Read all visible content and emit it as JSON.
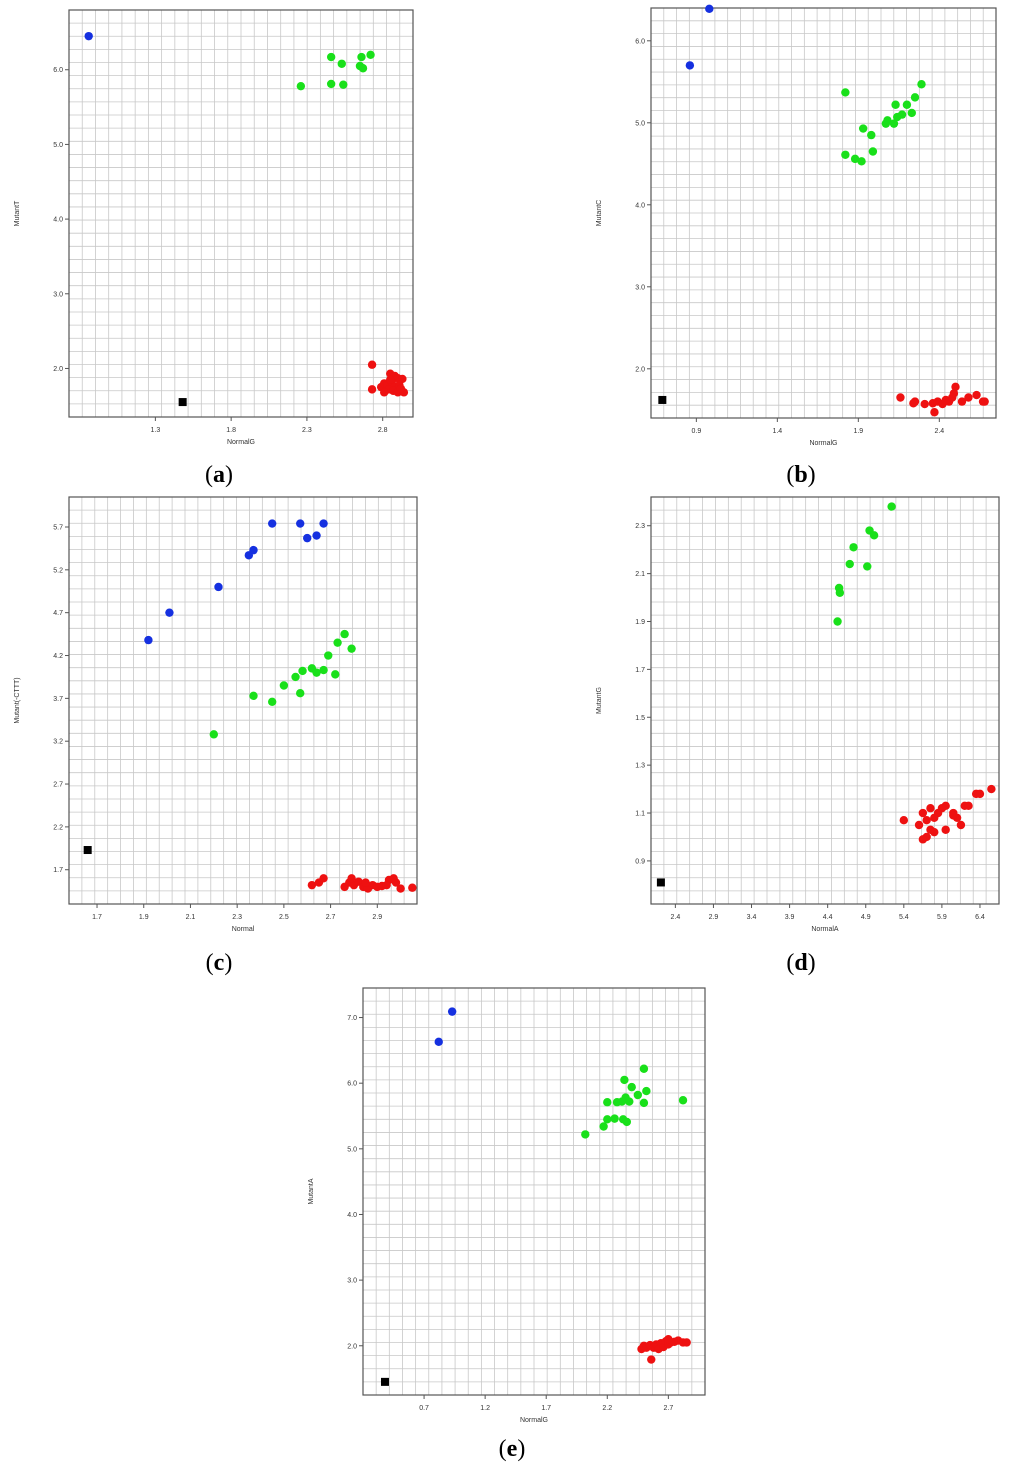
{
  "figure": {
    "colors": {
      "blue": "#1530e0",
      "green": "#19e01a",
      "red": "#ee1111",
      "black": "#000000",
      "grid": "#c8c8c8",
      "frame": "#555555"
    }
  },
  "chart_data": [
    {
      "panel": "a",
      "caption_letter": "a",
      "type": "scatter",
      "xlabel": "NormalG",
      "ylabel": "MutantT",
      "xticks": [
        "1.3",
        "1.8",
        "2.3",
        "2.8"
      ],
      "yticks": [
        "2.0",
        "3.0",
        "4.0",
        "5.0",
        "6.0"
      ],
      "xlim": [
        0.73,
        3.0
      ],
      "ylim": [
        1.35,
        6.8
      ],
      "grid": true,
      "series": [
        {
          "color": "blue",
          "points": [
            [
              0.86,
              6.45
            ]
          ]
        },
        {
          "color": "green",
          "points": [
            [
              2.46,
              6.17
            ],
            [
              2.53,
              6.08
            ],
            [
              2.66,
              6.17
            ],
            [
              2.72,
              6.2
            ],
            [
              2.65,
              6.05
            ],
            [
              2.67,
              6.02
            ],
            [
              2.46,
              5.81
            ],
            [
              2.54,
              5.8
            ],
            [
              2.26,
              5.78
            ]
          ]
        },
        {
          "color": "red",
          "points": [
            [
              2.73,
              2.05
            ],
            [
              2.73,
              1.72
            ],
            [
              2.79,
              1.75
            ],
            [
              2.81,
              1.8
            ],
            [
              2.83,
              1.78
            ],
            [
              2.85,
              1.93
            ],
            [
              2.88,
              1.9
            ],
            [
              2.9,
              1.87
            ],
            [
              2.93,
              1.86
            ],
            [
              2.86,
              1.82
            ],
            [
              2.88,
              1.75
            ],
            [
              2.91,
              1.78
            ],
            [
              2.84,
              1.72
            ],
            [
              2.87,
              1.7
            ],
            [
              2.9,
              1.68
            ],
            [
              2.94,
              1.68
            ],
            [
              2.81,
              1.68
            ],
            [
              2.85,
              1.85
            ],
            [
              2.92,
              1.73
            ]
          ]
        },
        {
          "color": "black",
          "shape": "square",
          "points": [
            [
              1.48,
              1.55
            ]
          ]
        }
      ]
    },
    {
      "panel": "b",
      "caption_letter": "b",
      "type": "scatter",
      "xlabel": "NormalG",
      "ylabel": "MutantC",
      "xticks": [
        "0.9",
        "1.4",
        "1.9",
        "2.4"
      ],
      "yticks": [
        "2.0",
        "3.0",
        "4.0",
        "5.0",
        "6.0"
      ],
      "xlim": [
        0.62,
        2.75
      ],
      "ylim": [
        1.4,
        6.4
      ],
      "grid": true,
      "series": [
        {
          "color": "blue",
          "points": [
            [
              0.86,
              5.7
            ],
            [
              0.98,
              6.39
            ]
          ]
        },
        {
          "color": "green",
          "points": [
            [
              1.82,
              5.37
            ],
            [
              2.29,
              5.47
            ],
            [
              2.25,
              5.31
            ],
            [
              2.13,
              5.22
            ],
            [
              2.2,
              5.22
            ],
            [
              2.23,
              5.12
            ],
            [
              2.17,
              5.1
            ],
            [
              2.14,
              5.07
            ],
            [
              2.08,
              5.03
            ],
            [
              2.07,
              4.99
            ],
            [
              2.12,
              4.99
            ],
            [
              1.93,
              4.93
            ],
            [
              1.98,
              4.85
            ],
            [
              1.82,
              4.61
            ],
            [
              1.88,
              4.56
            ],
            [
              1.92,
              4.53
            ],
            [
              1.99,
              4.65
            ]
          ]
        },
        {
          "color": "red",
          "points": [
            [
              2.16,
              1.65
            ],
            [
              2.24,
              1.58
            ],
            [
              2.25,
              1.6
            ],
            [
              2.31,
              1.57
            ],
            [
              2.36,
              1.58
            ],
            [
              2.39,
              1.6
            ],
            [
              2.42,
              1.57
            ],
            [
              2.44,
              1.62
            ],
            [
              2.46,
              1.6
            ],
            [
              2.48,
              1.65
            ],
            [
              2.49,
              1.7
            ],
            [
              2.5,
              1.78
            ],
            [
              2.54,
              1.6
            ],
            [
              2.58,
              1.65
            ],
            [
              2.63,
              1.68
            ],
            [
              2.67,
              1.6
            ],
            [
              2.68,
              1.6
            ],
            [
              2.37,
              1.47
            ]
          ]
        },
        {
          "color": "black",
          "shape": "square",
          "points": [
            [
              0.69,
              1.62
            ]
          ]
        }
      ]
    },
    {
      "panel": "c",
      "caption_letter": "c",
      "type": "scatter",
      "xlabel": "Normal",
      "ylabel": "Mutant(-CTTT)",
      "xticks": [
        "1.7",
        "1.9",
        "2.1",
        "2.3",
        "2.5",
        "2.7",
        "2.9"
      ],
      "yticks": [
        "1.7",
        "2.2",
        "2.7",
        "3.2",
        "3.7",
        "4.2",
        "4.7",
        "5.2",
        "5.7"
      ],
      "xlim": [
        1.58,
        3.07
      ],
      "ylim": [
        1.3,
        6.05
      ],
      "grid": true,
      "series": [
        {
          "color": "blue",
          "points": [
            [
              1.92,
              4.38
            ],
            [
              2.01,
              4.7
            ],
            [
              2.22,
              5.0
            ],
            [
              2.35,
              5.37
            ],
            [
              2.37,
              5.43
            ],
            [
              2.45,
              5.74
            ],
            [
              2.57,
              5.74
            ],
            [
              2.6,
              5.57
            ],
            [
              2.64,
              5.6
            ],
            [
              2.67,
              5.74
            ]
          ]
        },
        {
          "color": "green",
          "points": [
            [
              2.2,
              3.28
            ],
            [
              2.37,
              3.73
            ],
            [
              2.45,
              3.66
            ],
            [
              2.5,
              3.85
            ],
            [
              2.55,
              3.95
            ],
            [
              2.58,
              4.02
            ],
            [
              2.62,
              4.05
            ],
            [
              2.64,
              4.0
            ],
            [
              2.67,
              4.03
            ],
            [
              2.72,
              3.98
            ],
            [
              2.57,
              3.76
            ],
            [
              2.69,
              4.2
            ],
            [
              2.73,
              4.35
            ],
            [
              2.76,
              4.45
            ],
            [
              2.79,
              4.28
            ]
          ]
        },
        {
          "color": "red",
          "points": [
            [
              2.62,
              1.52
            ],
            [
              2.65,
              1.55
            ],
            [
              2.67,
              1.6
            ],
            [
              2.76,
              1.5
            ],
            [
              2.78,
              1.55
            ],
            [
              2.8,
              1.52
            ],
            [
              2.82,
              1.56
            ],
            [
              2.84,
              1.5
            ],
            [
              2.86,
              1.48
            ],
            [
              2.88,
              1.52
            ],
            [
              2.9,
              1.5
            ],
            [
              2.92,
              1.51
            ],
            [
              2.95,
              1.58
            ],
            [
              2.98,
              1.55
            ],
            [
              3.0,
              1.48
            ],
            [
              2.79,
              1.6
            ],
            [
              2.85,
              1.55
            ],
            [
              3.05,
              1.49
            ],
            [
              2.94,
              1.52
            ],
            [
              2.97,
              1.6
            ]
          ]
        },
        {
          "color": "black",
          "shape": "square",
          "points": [
            [
              1.66,
              1.93
            ]
          ]
        }
      ]
    },
    {
      "panel": "d",
      "caption_letter": "d",
      "type": "scatter",
      "xlabel": "NormalA",
      "ylabel": "MutantG",
      "xticks": [
        "2.4",
        "2.9",
        "3.4",
        "3.9",
        "4.4",
        "4.9",
        "5.4",
        "5.9",
        "6.4"
      ],
      "yticks": [
        "0.9",
        "1.1",
        "1.3",
        "1.5",
        "1.7",
        "1.9",
        "2.1",
        "2.3"
      ],
      "xlim": [
        2.08,
        6.65
      ],
      "ylim": [
        0.72,
        2.42
      ],
      "grid": true,
      "series": [
        {
          "color": "green",
          "points": [
            [
              5.24,
              2.38
            ],
            [
              4.95,
              2.28
            ],
            [
              5.01,
              2.26
            ],
            [
              4.74,
              2.21
            ],
            [
              4.69,
              2.14
            ],
            [
              4.92,
              2.13
            ],
            [
              4.55,
              2.04
            ],
            [
              4.56,
              2.02
            ],
            [
              4.53,
              1.9
            ]
          ]
        },
        {
          "color": "red",
          "points": [
            [
              6.55,
              1.2
            ],
            [
              6.35,
              1.18
            ],
            [
              6.4,
              1.18
            ],
            [
              6.2,
              1.13
            ],
            [
              6.25,
              1.13
            ],
            [
              6.05,
              1.1
            ],
            [
              6.1,
              1.08
            ],
            [
              5.95,
              1.13
            ],
            [
              5.9,
              1.12
            ],
            [
              5.85,
              1.1
            ],
            [
              5.8,
              1.08
            ],
            [
              5.75,
              1.12
            ],
            [
              5.7,
              1.07
            ],
            [
              5.65,
              1.1
            ],
            [
              5.6,
              1.05
            ],
            [
              5.7,
              1.0
            ],
            [
              5.75,
              1.03
            ],
            [
              5.8,
              1.02
            ],
            [
              5.95,
              1.03
            ],
            [
              6.15,
              1.05
            ],
            [
              5.4,
              1.07
            ],
            [
              5.65,
              0.99
            ],
            [
              6.05,
              1.09
            ]
          ]
        },
        {
          "color": "black",
          "shape": "square",
          "points": [
            [
              2.21,
              0.81
            ]
          ]
        }
      ]
    },
    {
      "panel": "e",
      "caption_letter": "e",
      "type": "scatter",
      "xlabel": "NormalG",
      "ylabel": "MutantA",
      "xticks": [
        "0.7",
        "1.2",
        "1.7",
        "2.2",
        "2.7"
      ],
      "yticks": [
        "2.0",
        "3.0",
        "4.0",
        "5.0",
        "6.0",
        "7.0"
      ],
      "xlim": [
        0.2,
        3.0
      ],
      "ylim": [
        1.25,
        7.45
      ],
      "grid": true,
      "series": [
        {
          "color": "blue",
          "points": [
            [
              0.82,
              6.63
            ],
            [
              0.93,
              7.09
            ]
          ]
        },
        {
          "color": "green",
          "points": [
            [
              2.02,
              5.22
            ],
            [
              2.17,
              5.34
            ],
            [
              2.2,
              5.45
            ],
            [
              2.26,
              5.46
            ],
            [
              2.2,
              5.71
            ],
            [
              2.28,
              5.71
            ],
            [
              2.32,
              5.72
            ],
            [
              2.35,
              5.78
            ],
            [
              2.38,
              5.72
            ],
            [
              2.4,
              5.94
            ],
            [
              2.34,
              6.05
            ],
            [
              2.45,
              5.82
            ],
            [
              2.5,
              5.7
            ],
            [
              2.52,
              5.88
            ],
            [
              2.5,
              6.22
            ],
            [
              2.33,
              5.45
            ],
            [
              2.36,
              5.41
            ],
            [
              2.82,
              5.74
            ]
          ]
        },
        {
          "color": "red",
          "points": [
            [
              2.48,
              1.95
            ],
            [
              2.5,
              2.0
            ],
            [
              2.52,
              1.97
            ],
            [
              2.55,
              2.01
            ],
            [
              2.58,
              1.97
            ],
            [
              2.6,
              2.02
            ],
            [
              2.62,
              1.95
            ],
            [
              2.64,
              2.04
            ],
            [
              2.66,
              1.98
            ],
            [
              2.68,
              2.07
            ],
            [
              2.7,
              2.02
            ],
            [
              2.72,
              2.05
            ],
            [
              2.75,
              2.06
            ],
            [
              2.78,
              2.08
            ],
            [
              2.82,
              2.05
            ],
            [
              2.85,
              2.05
            ],
            [
              2.56,
              1.79
            ],
            [
              2.7,
              2.1
            ]
          ]
        },
        {
          "color": "black",
          "shape": "square",
          "points": [
            [
              0.38,
              1.45
            ]
          ]
        }
      ]
    }
  ]
}
